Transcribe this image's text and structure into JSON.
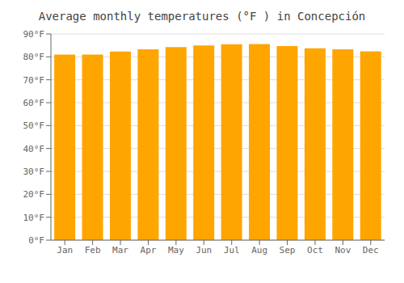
{
  "chart_data": {
    "type": "bar",
    "title": "Average monthly temperatures (°F ) in Concepción",
    "categories": [
      "Jan",
      "Feb",
      "Mar",
      "Apr",
      "May",
      "Jun",
      "Jul",
      "Aug",
      "Sep",
      "Oct",
      "Nov",
      "Dec"
    ],
    "values": [
      81.0,
      81.0,
      82.3,
      83.3,
      84.3,
      85.0,
      85.5,
      85.6,
      84.7,
      83.7,
      83.3,
      82.4
    ],
    "color": "#FFA500",
    "ylim": [
      0,
      90
    ],
    "yticks": [
      {
        "value": 0,
        "label": "0°F"
      },
      {
        "value": 10,
        "label": "10°F"
      },
      {
        "value": 20,
        "label": "20°F"
      },
      {
        "value": 30,
        "label": "30°F"
      },
      {
        "value": 40,
        "label": "40°F"
      },
      {
        "value": 50,
        "label": "50°F"
      },
      {
        "value": 60,
        "label": "60°F"
      },
      {
        "value": 70,
        "label": "70°F"
      },
      {
        "value": 80,
        "label": "80°F"
      },
      {
        "value": 90,
        "label": "90°F"
      }
    ],
    "grid": true
  }
}
